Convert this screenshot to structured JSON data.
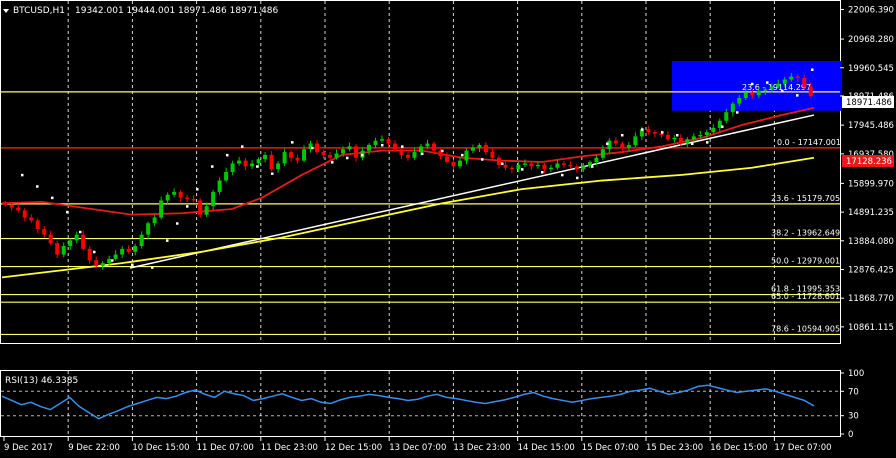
{
  "header": {
    "symbol": "BTCUSD,H1",
    "ohlc": "19342.001 19444.001 18971.486 18971.486"
  },
  "price_axis": {
    "ticks": [
      "22006.390",
      "20968.280",
      "19960.545",
      "18971.486",
      "17945.486",
      "16937.580",
      "15899.970",
      "14891.235",
      "13884.080",
      "12876.425",
      "11868.770",
      "10861.115"
    ]
  },
  "time_axis": {
    "ticks": [
      "9 Dec 2017",
      "9 Dec 22:00",
      "10 Dec 15:00",
      "11 Dec 07:00",
      "11 Dec 23:00",
      "12 Dec 15:00",
      "13 Dec 07:00",
      "13 Dec 23:00",
      "14 Dec 15:00",
      "15 Dec 07:00",
      "15 Dec 23:00",
      "16 Dec 15:00",
      "17 Dec 07:00"
    ]
  },
  "markers": {
    "current_price": "18971.486",
    "red_line_price": "17128.236"
  },
  "fibonacci": {
    "levels": [
      {
        "label": "0.0 - 17147.001",
        "price": 17147.001
      },
      {
        "label": "23.6 - 15179.705",
        "price": 15179.705
      },
      {
        "label": "38.2 - 13962.649",
        "price": 13962.649
      },
      {
        "label": "50.0 - 12979.001",
        "price": 12979.001
      },
      {
        "label": "61.8 - 11995.353",
        "price": 11995.353
      },
      {
        "label": "65.0 - 11728.601",
        "price": 11728.601
      },
      {
        "label": "78.6 - 10594.905",
        "price": 10594.905
      }
    ],
    "top_label": "23.6 - 19114.297"
  },
  "rsi": {
    "label": "RSI(13) 46.3385",
    "levels": [
      "100",
      "70",
      "30",
      "0"
    ],
    "ylim": [
      0,
      100
    ],
    "values": [
      62,
      55,
      48,
      52,
      45,
      40,
      50,
      60,
      45,
      35,
      25,
      32,
      38,
      45,
      50,
      55,
      60,
      58,
      62,
      68,
      72,
      65,
      60,
      70,
      66,
      63,
      55,
      58,
      62,
      66,
      60,
      55,
      58,
      52,
      50,
      56,
      60,
      62,
      65,
      63,
      60,
      58,
      55,
      57,
      62,
      65,
      60,
      58,
      55,
      52,
      50,
      53,
      56,
      60,
      65,
      68,
      62,
      58,
      55,
      52,
      55,
      58,
      60,
      62,
      65,
      70,
      72,
      75,
      70,
      65,
      68,
      72,
      78,
      80,
      76,
      72,
      68,
      70,
      72,
      74,
      70,
      65,
      60,
      55,
      46
    ]
  },
  "colors": {
    "bg": "#000000",
    "grid": "#ffffff",
    "bull": "#00c800",
    "bear": "#ff0000",
    "ma_fast": "#e51b1b",
    "ma_slow": "#ffff33",
    "fib": "#ffff66",
    "trend": "#ffffff",
    "rect": "#0000ff",
    "rsi": "#3a8eeb",
    "psar": "#ffffff"
  },
  "chart_data": {
    "type": "candlestick",
    "title": "BTCUSD,H1",
    "ylim": [
      10400,
      22200
    ],
    "x_range": [
      0,
      812
    ],
    "candles_close": [
      15150,
      15050,
      14950,
      14700,
      14600,
      14300,
      14100,
      13800,
      13400,
      13700,
      13900,
      14100,
      13600,
      13200,
      13000,
      13100,
      13250,
      13400,
      13600,
      13500,
      13700,
      14100,
      14500,
      14700,
      15300,
      15500,
      15600,
      15400,
      15350,
      15300,
      14800,
      15100,
      15600,
      16000,
      16300,
      16600,
      16700,
      16500,
      16600,
      16750,
      16900,
      16400,
      16600,
      17000,
      16800,
      16700,
      17100,
      17300,
      17000,
      16900,
      16800,
      16950,
      17100,
      17200,
      16800,
      17050,
      17250,
      17400,
      17450,
      17300,
      17100,
      16900,
      16800,
      17000,
      17200,
      17300,
      17050,
      16850,
      16650,
      16500,
      16700,
      17050,
      17150,
      17250,
      17000,
      16800,
      16550,
      16450,
      16400,
      16550,
      16600,
      16500,
      16550,
      16400,
      16450,
      16600,
      16550,
      16500,
      16400,
      16500,
      16650,
      16800,
      17100,
      17400,
      17300,
      17150,
      17250,
      17550,
      17800,
      17700,
      17650,
      17600,
      17450,
      17500,
      17300,
      17450,
      17550,
      17600,
      17700,
      17850,
      18100,
      18400,
      18700,
      18900,
      19100,
      19000,
      19150,
      19200,
      19300,
      19400,
      19550,
      19650,
      19600,
      19300,
      18971
    ],
    "ma_fast_points": [
      [
        0,
        15200
      ],
      [
        40,
        15250
      ],
      [
        80,
        15050
      ],
      [
        130,
        14800
      ],
      [
        180,
        14850
      ],
      [
        230,
        15000
      ],
      [
        260,
        15400
      ],
      [
        300,
        16200
      ],
      [
        340,
        16900
      ],
      [
        380,
        17050
      ],
      [
        420,
        17050
      ],
      [
        460,
        16800
      ],
      [
        500,
        16700
      ],
      [
        540,
        16650
      ],
      [
        580,
        16850
      ],
      [
        620,
        17000
      ],
      [
        660,
        17200
      ],
      [
        700,
        17500
      ],
      [
        740,
        17950
      ],
      [
        780,
        18300
      ],
      [
        812,
        18550
      ]
    ],
    "ma_slow_points": [
      [
        0,
        12600
      ],
      [
        60,
        12850
      ],
      [
        120,
        13100
      ],
      [
        200,
        13500
      ],
      [
        280,
        14000
      ],
      [
        360,
        14600
      ],
      [
        440,
        15200
      ],
      [
        520,
        15700
      ],
      [
        600,
        16000
      ],
      [
        680,
        16200
      ],
      [
        750,
        16450
      ],
      [
        812,
        16800
      ]
    ],
    "trend_points": [
      [
        128,
        12930
      ],
      [
        812,
        18300
      ]
    ],
    "psar_points": [
      [
        20,
        16200
      ],
      [
        35,
        15800
      ],
      [
        50,
        15400
      ],
      [
        65,
        14900
      ],
      [
        78,
        14200
      ],
      [
        92,
        13500
      ],
      [
        110,
        13200
      ],
      [
        130,
        13050
      ],
      [
        150,
        12950
      ],
      [
        165,
        13900
      ],
      [
        175,
        14500
      ],
      [
        185,
        15100
      ],
      [
        195,
        15700
      ],
      [
        210,
        16500
      ],
      [
        225,
        16900
      ],
      [
        240,
        17200
      ],
      [
        255,
        16500
      ],
      [
        270,
        16250
      ],
      [
        290,
        17350
      ],
      [
        310,
        17150
      ],
      [
        330,
        16650
      ],
      [
        345,
        16800
      ],
      [
        360,
        16900
      ],
      [
        380,
        17250
      ],
      [
        400,
        17200
      ],
      [
        420,
        16950
      ],
      [
        440,
        17050
      ],
      [
        460,
        16900
      ],
      [
        480,
        16750
      ],
      [
        500,
        16600
      ],
      [
        520,
        16400
      ],
      [
        540,
        16300
      ],
      [
        560,
        16200
      ],
      [
        575,
        16100
      ],
      [
        590,
        16500
      ],
      [
        605,
        17300
      ],
      [
        620,
        17600
      ],
      [
        640,
        17800
      ],
      [
        660,
        17700
      ],
      [
        675,
        17600
      ],
      [
        690,
        17300
      ],
      [
        705,
        17350
      ],
      [
        720,
        17900
      ],
      [
        735,
        18400
      ],
      [
        750,
        19400
      ],
      [
        765,
        19450
      ],
      [
        780,
        19150
      ],
      [
        795,
        19000
      ],
      [
        810,
        19900
      ]
    ],
    "fib_top_price": 19114.297,
    "highlight_rect": {
      "x0": 670,
      "x1": 840,
      "y0": 18450,
      "y1": 20200
    }
  }
}
